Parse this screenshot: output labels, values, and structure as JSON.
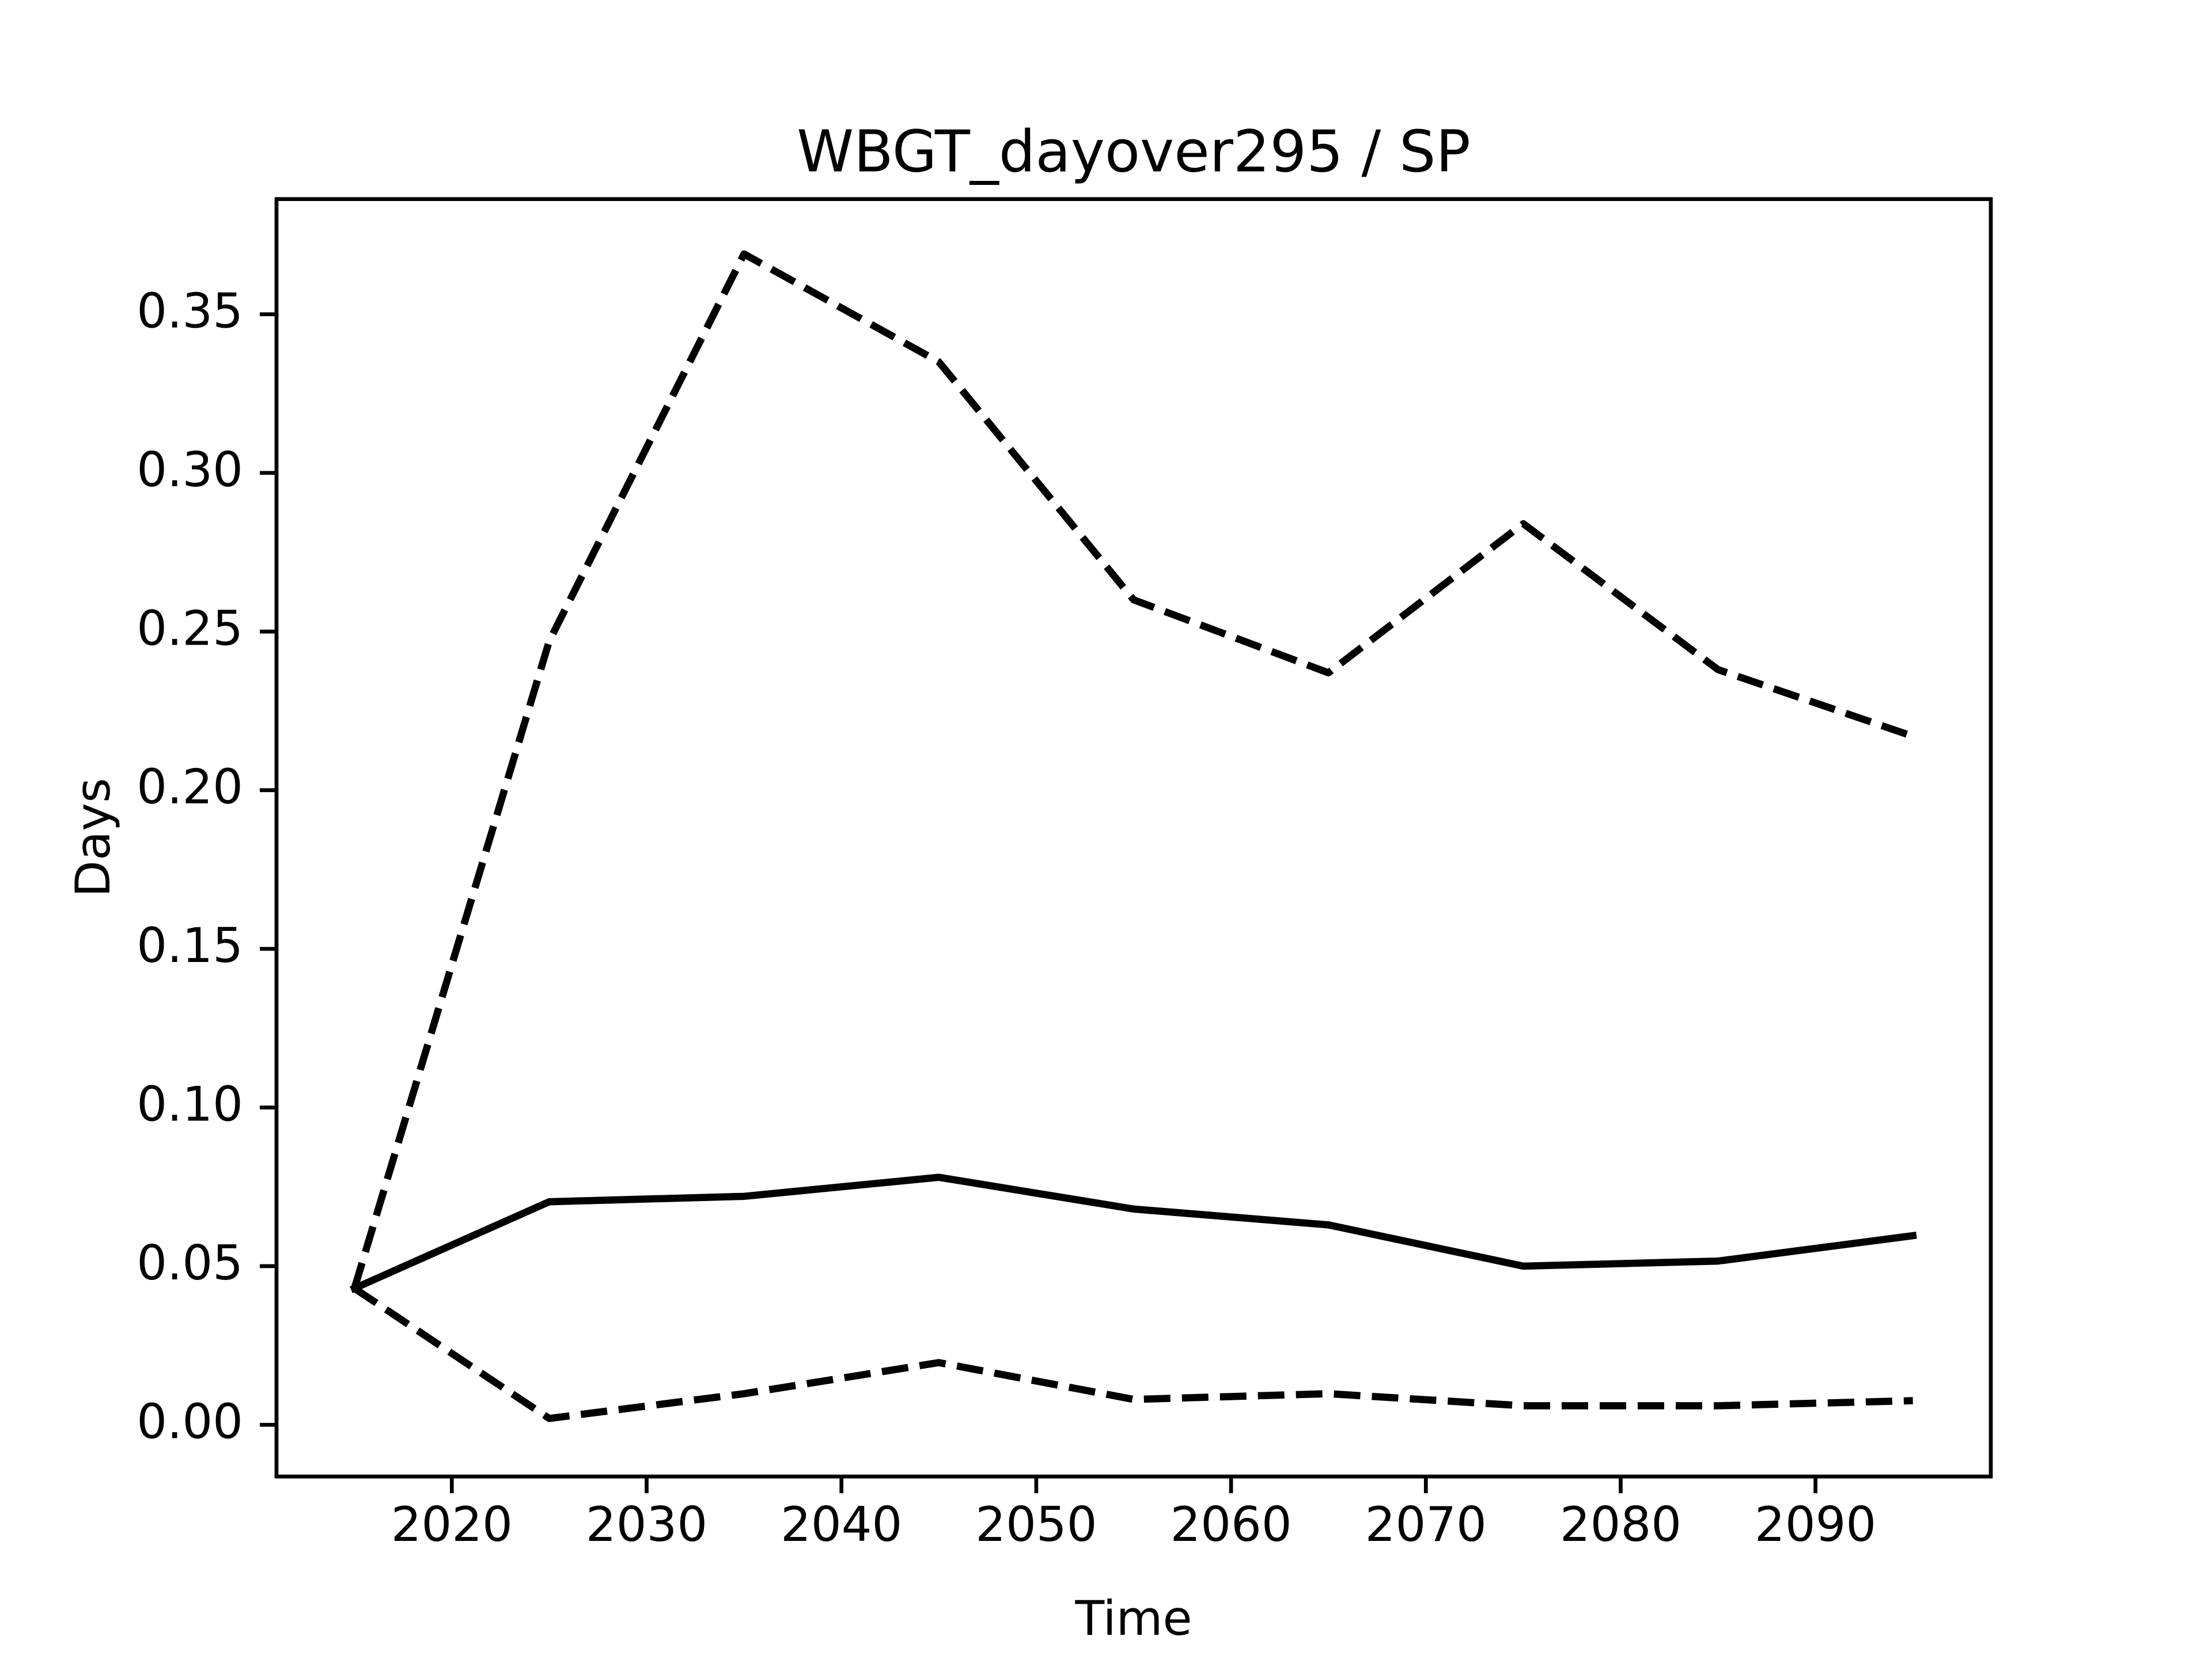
{
  "chart_data": {
    "type": "line",
    "title": "WBGT_dayover295 / SP",
    "xlabel": "Time",
    "ylabel": "Days",
    "x": [
      2015,
      2025,
      2035,
      2045,
      2055,
      2065,
      2075,
      2085,
      2095
    ],
    "series": [
      {
        "color": "#000000",
        "linestyle": "solid",
        "values": [
          0.043,
          0.0703,
          0.072,
          0.078,
          0.068,
          0.063,
          0.05,
          0.0516,
          0.0596
        ]
      },
      {
        "color": "#000000",
        "linestyle": "dashed",
        "values": [
          0.043,
          0.247,
          0.369,
          0.335,
          0.26,
          0.237,
          0.284,
          0.238,
          0.217
        ]
      },
      {
        "color": "#000000",
        "linestyle": "dashed",
        "values": [
          0.043,
          0.002,
          0.0098,
          0.0196,
          0.008,
          0.0098,
          0.006,
          0.006,
          0.0076
        ]
      }
    ],
    "xlim": [
      2011,
      2099
    ],
    "xticks": [
      2020,
      2030,
      2040,
      2050,
      2060,
      2070,
      2080,
      2090
    ],
    "ylim": [
      -0.0163,
      0.3863
    ],
    "yticks": [
      {
        "value": 0,
        "label": "0.00"
      },
      {
        "value": 0.05,
        "label": "0.05"
      },
      {
        "value": 0.1,
        "label": "0.10"
      },
      {
        "value": 0.15,
        "label": "0.15"
      },
      {
        "value": 0.2,
        "label": "0.20"
      },
      {
        "value": 0.25,
        "label": "0.25"
      },
      {
        "value": 0.3,
        "label": "0.30"
      },
      {
        "value": 0.35,
        "label": "0.35"
      }
    ],
    "grid": false
  }
}
